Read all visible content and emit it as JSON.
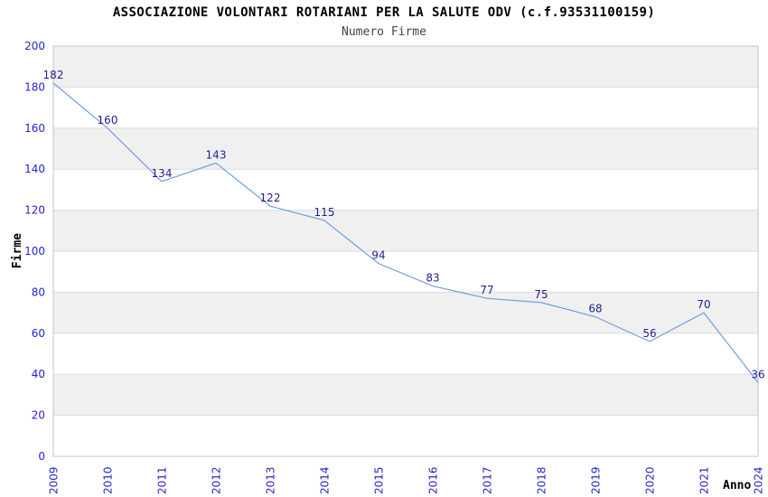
{
  "chart_data": {
    "type": "line",
    "title": "ASSOCIAZIONE VOLONTARI ROTARIANI PER LA SALUTE ODV (c.f.93531100159)",
    "subtitle": "Numero Firme",
    "xlabel": "Anno",
    "ylabel": "Firme",
    "categories": [
      "2009",
      "2010",
      "2011",
      "2012",
      "2013",
      "2014",
      "2015",
      "2016",
      "2017",
      "2018",
      "2019",
      "2020",
      "2021",
      "2024"
    ],
    "values": [
      182,
      160,
      134,
      143,
      122,
      115,
      94,
      83,
      77,
      75,
      68,
      56,
      70,
      36
    ],
    "ylim": [
      0,
      200
    ],
    "ytick_step": 20,
    "grid": "alternating-horizontal-bands",
    "legend": "none",
    "colors": {
      "line": "#6f9fe0",
      "data_label": "#1f1f8f",
      "tick_label": "#2525d0",
      "band": "#f0f0f0",
      "gridline": "#dcdcdc",
      "plot_border": "#c6c6c6",
      "title": "#000000",
      "subtitle": "#444444",
      "axis_title": "#000000",
      "background": "#ffffff"
    }
  }
}
